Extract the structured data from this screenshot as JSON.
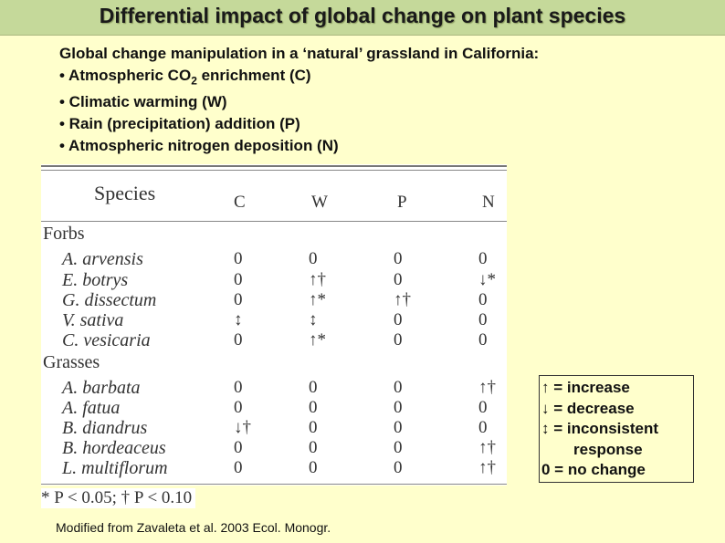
{
  "title": "Differential impact of global change on plant species",
  "intro": {
    "lead": "Global change manipulation in a ‘natural’ grassland in California:",
    "bullet_c_pre": "• Atmospheric CO",
    "bullet_c_sub": "2",
    "bullet_c_post": " enrichment (C)",
    "bullet_w": "• Climatic warming (W)",
    "bullet_p": "• Rain (precipitation) addition (P)",
    "bullet_n": "• Atmospheric nitrogen deposition (N)"
  },
  "table": {
    "species_header": "Species",
    "columns": [
      "C",
      "W",
      "P",
      "N"
    ],
    "groups": [
      {
        "name": "Forbs",
        "rows": [
          {
            "species": "A. arvensis",
            "values": [
              "0",
              "0",
              "0",
              "0"
            ]
          },
          {
            "species": "E. botrys",
            "values": [
              "0",
              "↑†",
              "0",
              "↓*"
            ]
          },
          {
            "species": "G. dissectum",
            "values": [
              "0",
              "↑*",
              "↑†",
              "0"
            ]
          },
          {
            "species": "V. sativa",
            "values": [
              "↕",
              "↕",
              "0",
              "0"
            ]
          },
          {
            "species": "C. vesicaria",
            "values": [
              "0",
              "↑*",
              "0",
              "0"
            ]
          }
        ]
      },
      {
        "name": "Grasses",
        "rows": [
          {
            "species": "A. barbata",
            "values": [
              "0",
              "0",
              "0",
              "↑†"
            ]
          },
          {
            "species": "A. fatua",
            "values": [
              "0",
              "0",
              "0",
              "0"
            ]
          },
          {
            "species": "B. diandrus",
            "values": [
              "↓†",
              "0",
              "0",
              "0"
            ]
          },
          {
            "species": "B. hordeaceus",
            "values": [
              "0",
              "0",
              "0",
              "↑†"
            ]
          },
          {
            "species": "L. multiflorum",
            "values": [
              "0",
              "0",
              "0",
              "↑†"
            ]
          }
        ]
      }
    ],
    "footnote": "* P < 0.05; † P < 0.10"
  },
  "legend": {
    "increase": "↑ = increase",
    "decrease": "↓ = decrease",
    "inconsistent": "↕ = inconsistent",
    "response": "response",
    "no_change": "0 = no change"
  },
  "source": "Modified from Zavaleta et al. 2003 Ecol. Monogr."
}
